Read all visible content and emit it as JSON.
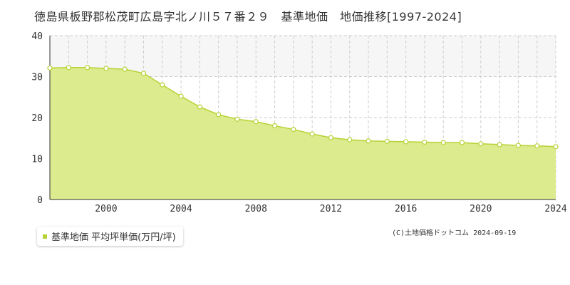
{
  "title": "徳島県板野郡松茂町広島字北ノ川５７番２９　基準地価　地価推移[1997-2024]",
  "legend": {
    "label": "基準地価 平均坪単価(万円/坪)"
  },
  "copyright": "(C)土地価格ドットコム 2024-09-19",
  "colors": {
    "fill": "#dceb8e",
    "line": "#b5d334",
    "highlight_band": "#f6f6f6",
    "grid": "#cccccc",
    "axis": "#333333"
  },
  "chart_data": {
    "type": "area",
    "x": [
      1997,
      1998,
      1999,
      2000,
      2001,
      2002,
      2003,
      2004,
      2005,
      2006,
      2007,
      2008,
      2009,
      2010,
      2011,
      2012,
      2013,
      2014,
      2015,
      2016,
      2017,
      2018,
      2019,
      2020,
      2021,
      2022,
      2023,
      2024
    ],
    "series": [
      {
        "name": "基準地価 平均坪単価(万円/坪)",
        "values": [
          32.1,
          32.2,
          32.2,
          32.0,
          31.8,
          30.8,
          28.0,
          25.2,
          22.6,
          20.7,
          19.6,
          19.0,
          18.0,
          17.1,
          16.0,
          15.1,
          14.6,
          14.3,
          14.2,
          14.1,
          14.0,
          13.9,
          13.9,
          13.6,
          13.4,
          13.2,
          13.1,
          12.9
        ]
      }
    ],
    "xticks": [
      2000,
      2004,
      2008,
      2012,
      2016,
      2020,
      2024
    ],
    "yticks": [
      0,
      10,
      20,
      30,
      40
    ],
    "xlim": [
      1997,
      2024
    ],
    "ylim": [
      0,
      40
    ],
    "grid": true,
    "legend_position": "bottom-left"
  }
}
